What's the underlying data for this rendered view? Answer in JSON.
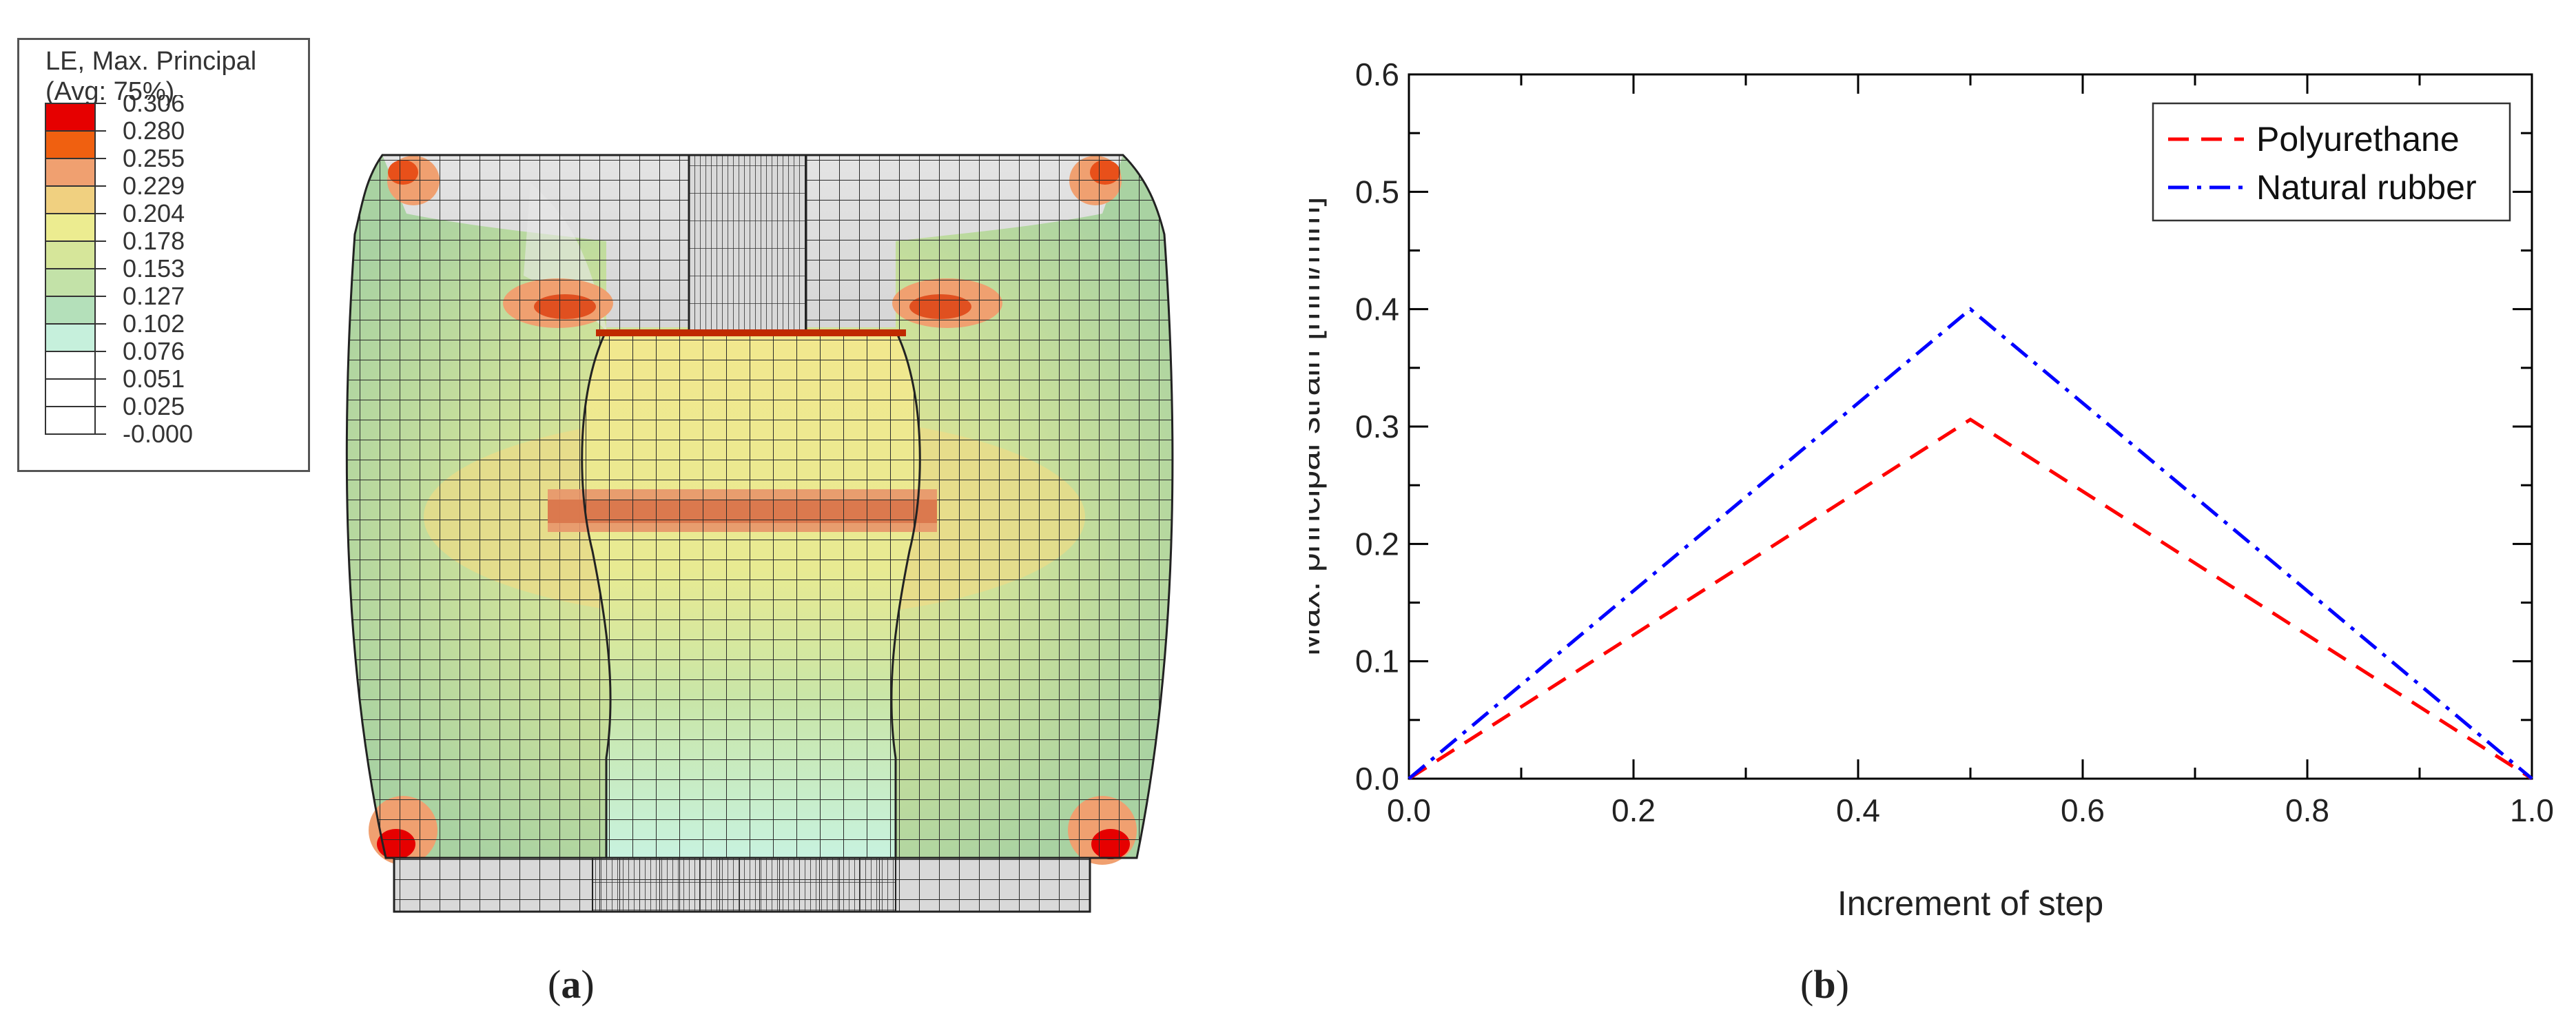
{
  "panel_a": {
    "legend": {
      "title_line1": "LE, Max. Principal",
      "title_line2": "(Avg: 75%)",
      "entries": [
        {
          "label": "0.306",
          "color": "#e60000"
        },
        {
          "label": "0.280",
          "color": "#f06010"
        },
        {
          "label": "0.255",
          "color": "#f0a070"
        },
        {
          "label": "0.229",
          "color": "#f0d080"
        },
        {
          "label": "0.204",
          "color": "#ecec90"
        },
        {
          "label": "0.178",
          "color": "#d6e69a"
        },
        {
          "label": "0.153",
          "color": "#c3e2a8"
        },
        {
          "label": "0.127",
          "color": "#b4e0ba"
        },
        {
          "label": "0.102",
          "color": "#c6f0dc"
        },
        {
          "label": "0.076",
          "color": "#ffffff"
        },
        {
          "label": "0.051",
          "color": "#ffffff"
        },
        {
          "label": "0.025",
          "color": "#ffffff"
        },
        {
          "label": "-0.000",
          "color": "#ffffff"
        }
      ]
    },
    "caption_letter": "a"
  },
  "panel_b": {
    "caption_letter": "b"
  },
  "chart_data": {
    "type": "line",
    "title": "",
    "xlabel": "Increment of step",
    "ylabel": "Max. principal strain [mm/mm]",
    "xlim": [
      0.0,
      1.0
    ],
    "ylim": [
      0.0,
      0.6
    ],
    "xticks": [
      "0.0",
      "0.2",
      "0.4",
      "0.6",
      "0.8",
      "1.0"
    ],
    "yticks": [
      "0.0",
      "0.1",
      "0.2",
      "0.3",
      "0.4",
      "0.5",
      "0.6"
    ],
    "legend_position": "top-right",
    "series": [
      {
        "name": "Polyurethane",
        "color": "#ff0000",
        "dash": "dashed",
        "x": [
          0.0,
          0.5,
          1.0
        ],
        "y": [
          0.0,
          0.306,
          0.0
        ]
      },
      {
        "name": "Natural rubber",
        "color": "#0000ff",
        "dash": "dash-dot",
        "x": [
          0.0,
          0.5,
          1.0
        ],
        "y": [
          0.0,
          0.4,
          0.0
        ]
      }
    ]
  }
}
